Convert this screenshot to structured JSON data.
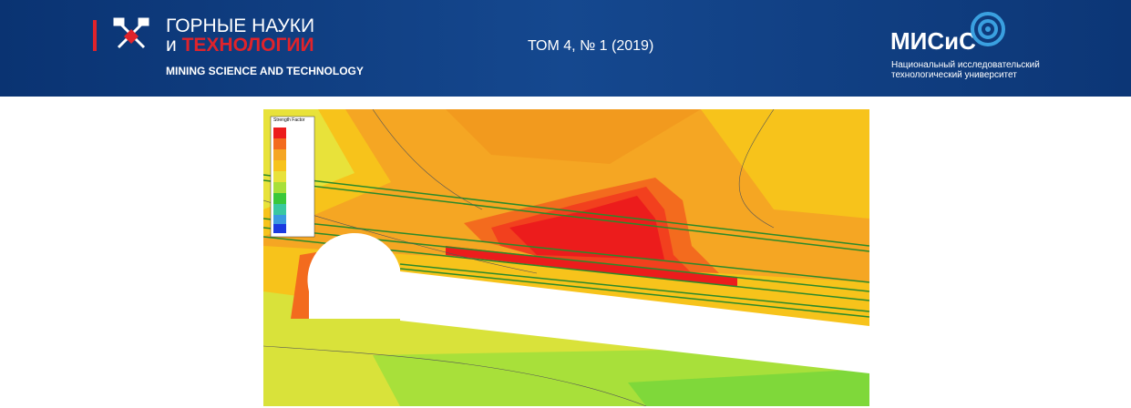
{
  "header": {
    "journal_title_line1": "ГОРНЫЕ НАУКИ",
    "journal_title_line2_prefix": "и",
    "journal_title_line2": "ТЕХНОЛОГИИ",
    "journal_subtitle_en": "MINING SCIENCE AND TECHNOLOGY",
    "issue": "ТОМ 4, № 1 (2019)",
    "university_name": "МИСиС",
    "university_description_line1": "Национальный исследовательский",
    "university_description_line2": "технологический университет"
  },
  "figure": {
    "legend_title": "Strength Factor"
  }
}
